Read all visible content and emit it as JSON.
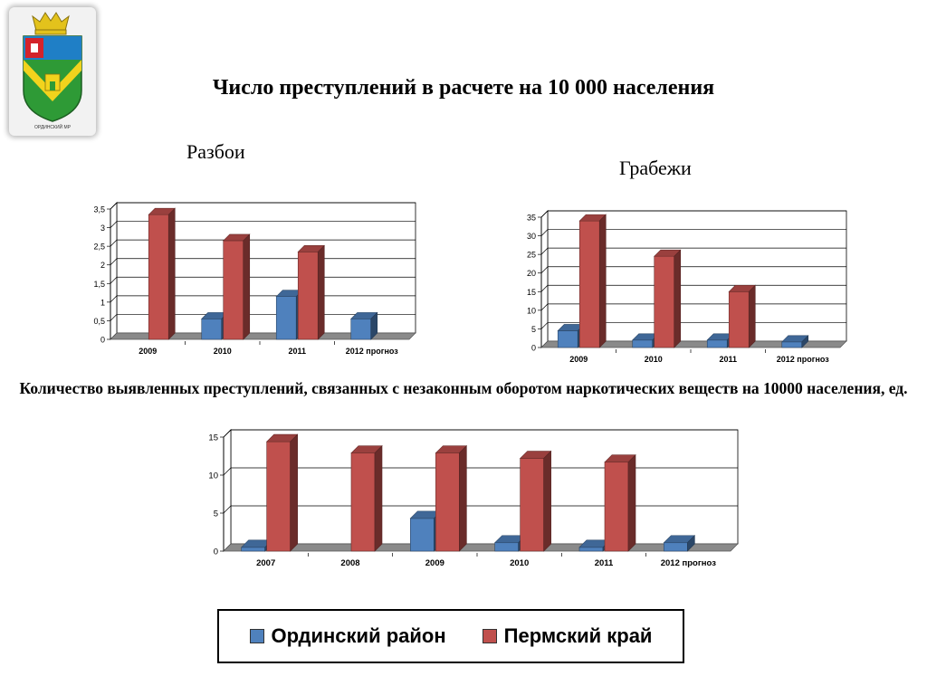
{
  "slide": {
    "title": "Число преступлений в расчете на 10 000 населения",
    "coat_caption": "ОРДИНСКИЙ МР"
  },
  "colors": {
    "ordinsky": "#4f81bd",
    "perm": "#c0504d"
  },
  "legend": {
    "items": [
      "Ординский район",
      "Пермский край"
    ]
  },
  "chart_data": [
    {
      "type": "bar",
      "title": "Разбои",
      "categories": [
        "2009",
        "2010",
        "2011",
        "2012 прогноз"
      ],
      "series": [
        {
          "name": "Ординский район",
          "values": [
            0,
            0.55,
            1.15,
            0.55
          ]
        },
        {
          "name": "Пермский край",
          "values": [
            3.35,
            2.65,
            2.35,
            0
          ]
        }
      ],
      "ylim": [
        0,
        3.5
      ],
      "yticks": [
        "0",
        "0,5",
        "1",
        "1,5",
        "2",
        "2,5",
        "3",
        "3,5"
      ],
      "grid": true
    },
    {
      "type": "bar",
      "title": "Грабежи",
      "categories": [
        "2009",
        "2010",
        "2011",
        "2012 прогноз"
      ],
      "series": [
        {
          "name": "Ординский район",
          "values": [
            4.5,
            2,
            2,
            1.5
          ]
        },
        {
          "name": "Пермский край",
          "values": [
            34,
            24.5,
            15,
            0
          ]
        }
      ],
      "ylim": [
        0,
        35
      ],
      "yticks": [
        "0",
        "5",
        "10",
        "15",
        "20",
        "25",
        "30",
        "35"
      ],
      "grid": true
    },
    {
      "type": "bar",
      "title": "Количество выявленных преступлений, связанных с незаконным оборотом наркотических веществ на 10000 населения, ед.",
      "categories": [
        "2007",
        "2008",
        "2009",
        "2010",
        "2011",
        "2012 прогноз"
      ],
      "series": [
        {
          "name": "Ординский район",
          "values": [
            0.5,
            0,
            4.3,
            1.1,
            0.5,
            1.1
          ]
        },
        {
          "name": "Пермский край",
          "values": [
            14.4,
            12.9,
            12.9,
            12.2,
            11.7,
            0
          ]
        }
      ],
      "ylim": [
        0,
        15
      ],
      "yticks": [
        "0",
        "5",
        "10",
        "15"
      ],
      "grid": true
    }
  ]
}
